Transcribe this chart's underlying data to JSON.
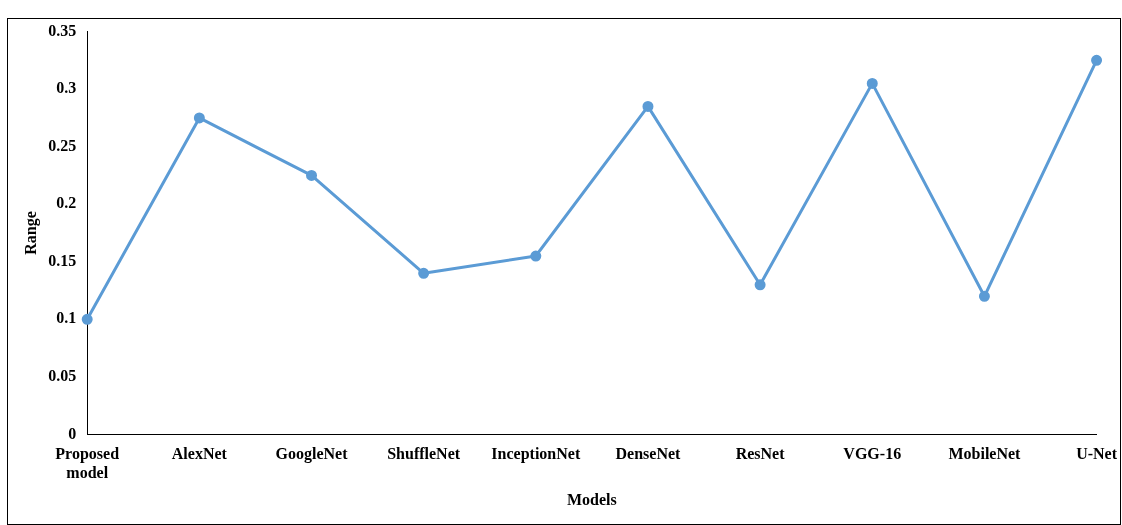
{
  "chart_data": {
    "type": "line",
    "xlabel": "Models",
    "ylabel": "Range",
    "categories": [
      "Proposed model",
      "AlexNet",
      "GoogleNet",
      "ShuffleNet",
      "InceptionNet",
      "DenseNet",
      "ResNet",
      "VGG-16",
      "MobileNet",
      "U-Net"
    ],
    "series": [
      {
        "color": "#5b9bd5",
        "values": [
          0.1,
          0.275,
          0.225,
          0.14,
          0.155,
          0.285,
          0.13,
          0.305,
          0.12,
          0.325
        ]
      }
    ],
    "ylim": [
      0,
      0.35
    ],
    "yticks": [
      0,
      0.05,
      0.1,
      0.15,
      0.2,
      0.25,
      0.3,
      0.35
    ],
    "grid": false,
    "legend": false,
    "marker": "circle",
    "line_style": "solid"
  }
}
